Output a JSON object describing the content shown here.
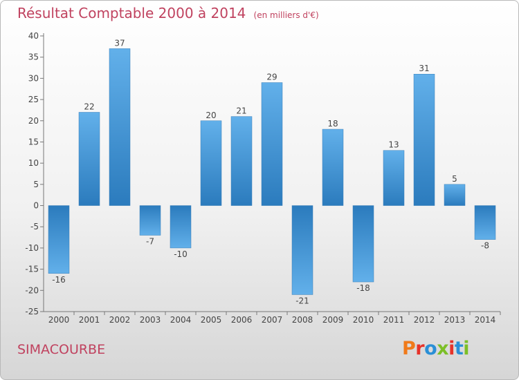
{
  "header": {
    "title": "Résultat Comptable 2000 à 2014",
    "unit": "(en milliers d'€)"
  },
  "footer": {
    "commune": "SIMACOURBE",
    "logo": "Proxiti"
  },
  "colors": {
    "title": "#c0425f",
    "bar_light": "#62b0ea",
    "bar_dark": "#2b7bbd",
    "logo": [
      "#f07a1a",
      "#e6332a",
      "#2a8fd6",
      "#7cbf27",
      "#e6332a",
      "#2a8fd6",
      "#7cbf27"
    ]
  },
  "chart_data": {
    "type": "bar",
    "categories": [
      "2000",
      "2001",
      "2002",
      "2003",
      "2004",
      "2005",
      "2006",
      "2007",
      "2008",
      "2009",
      "2010",
      "2011",
      "2012",
      "2013",
      "2014"
    ],
    "values": [
      -16,
      22,
      37,
      -7,
      -10,
      20,
      21,
      29,
      -21,
      18,
      -18,
      13,
      31,
      5,
      -8
    ],
    "title": "Résultat Comptable 2000 à 2014",
    "ylim": [
      -25,
      40
    ],
    "yticks": [
      -25,
      -20,
      -15,
      -10,
      -5,
      0,
      5,
      10,
      15,
      20,
      25,
      30,
      35,
      40
    ],
    "grid": false,
    "legend": "none"
  }
}
